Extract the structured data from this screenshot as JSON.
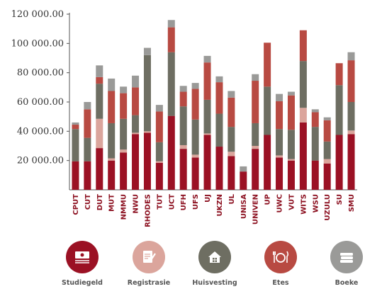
{
  "chart_data": {
    "type": "bar",
    "stacked": true,
    "categories": [
      "CPUT",
      "CUT",
      "DUT",
      "MUT",
      "NMMU",
      "NWU",
      "RHODES",
      "TUT",
      "UCT",
      "UFH",
      "UFS",
      "UJ",
      "UKZN",
      "UL",
      "UNISA",
      "UNIVEN",
      "UP",
      "UWC",
      "VUT",
      "WITS",
      "WSU",
      "UZULU",
      "SU",
      "SMU"
    ],
    "y_tick_labels": [
      "20 000.00",
      "40 000.00",
      "60 000.00",
      "80 000.00",
      "100 000.00",
      "120 000.00"
    ],
    "ylim": [
      0,
      120000
    ],
    "grid": false,
    "legend_position": "bottom",
    "series": [
      {
        "name": "Studiegeld",
        "color": "#9b1124",
        "values": [
          19500,
          19500,
          28500,
          20000,
          25500,
          38000,
          39000,
          18500,
          50500,
          28000,
          22000,
          37500,
          29500,
          23000,
          12500,
          28000,
          37500,
          22000,
          20000,
          46000,
          20000,
          18000,
          37500,
          38000
        ]
      },
      {
        "name": "Registrasie",
        "color": "#dba59c",
        "values": [
          0,
          0,
          20000,
          1500,
          2000,
          1000,
          1000,
          1000,
          0,
          2500,
          2000,
          1000,
          0,
          3000,
          0,
          2000,
          0,
          1500,
          1000,
          10000,
          0,
          3000,
          0,
          2500
        ]
      },
      {
        "name": "Huisvesting",
        "color": "#6e6e62",
        "values": [
          22000,
          16000,
          24000,
          24000,
          21000,
          12000,
          52000,
          13000,
          43500,
          26500,
          24000,
          23000,
          22500,
          17000,
          0,
          15500,
          33000,
          18000,
          20000,
          32000,
          23000,
          12000,
          34000,
          19500
        ]
      },
      {
        "name": "Etes",
        "color": "#b84a42",
        "values": [
          3000,
          19500,
          4500,
          22000,
          17500,
          19000,
          0,
          21000,
          17000,
          10000,
          21000,
          25500,
          21500,
          20000,
          0,
          29000,
          30000,
          19000,
          23500,
          21000,
          10000,
          14500,
          15000,
          28500
        ]
      },
      {
        "name": "Boeke",
        "color": "#9a9a98",
        "values": [
          1500,
          5000,
          8000,
          8500,
          4500,
          8000,
          5000,
          4500,
          5000,
          4000,
          4000,
          4500,
          4000,
          4500,
          3500,
          4500,
          0,
          5000,
          2500,
          0,
          2000,
          2000,
          0,
          5500
        ]
      }
    ]
  }
}
